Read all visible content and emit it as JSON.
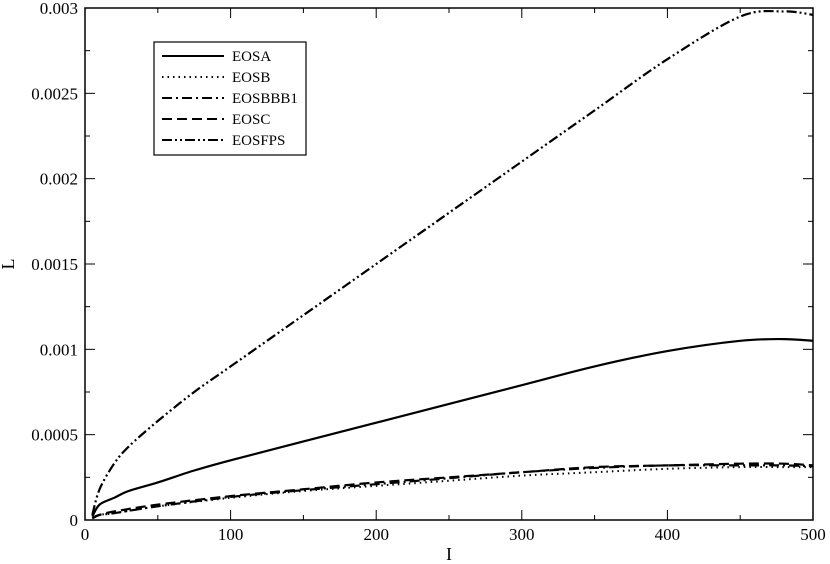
{
  "chart_data": {
    "type": "line",
    "title": "",
    "xlabel": "I",
    "ylabel": "L",
    "xlim": [
      0,
      500
    ],
    "ylim": [
      0,
      0.003
    ],
    "x_ticks": [
      0,
      100,
      200,
      300,
      400,
      500
    ],
    "x_tick_labels": [
      "0",
      "100",
      "200",
      "300",
      "400",
      "500"
    ],
    "y_ticks": [
      0,
      0.0005,
      0.001,
      0.0015,
      0.002,
      0.0025,
      0.003
    ],
    "y_tick_labels": [
      "0",
      "0.0005",
      "0.001",
      "0.0015",
      "0.002",
      "0.0025",
      "0.003"
    ],
    "grid": false,
    "legend_position": "top-left",
    "series": [
      {
        "name": "EOSA",
        "line_style": "solid",
        "x": [
          5,
          10,
          20,
          30,
          50,
          75,
          100,
          150,
          200,
          250,
          300,
          350,
          400,
          450,
          480,
          500
        ],
        "y": [
          2e-05,
          9e-05,
          0.00013,
          0.00017,
          0.00022,
          0.00029,
          0.00035,
          0.00046,
          0.00057,
          0.00068,
          0.00079,
          0.0009,
          0.00099,
          0.00105,
          0.00106,
          0.00105
        ]
      },
      {
        "name": "EOSB",
        "line_style": "dotted",
        "x": [
          5,
          10,
          20,
          50,
          100,
          150,
          200,
          250,
          300,
          350,
          400,
          450,
          480,
          500
        ],
        "y": [
          1e-05,
          3e-05,
          4e-05,
          8e-05,
          0.00013,
          0.00017,
          0.0002,
          0.00023,
          0.00026,
          0.00028,
          0.0003,
          0.00031,
          0.00031,
          0.00031
        ]
      },
      {
        "name": "EOSBBB1",
        "line_style": "dash-dot",
        "x": [
          5,
          10,
          20,
          50,
          100,
          150,
          200,
          250,
          300,
          350,
          400,
          450,
          480,
          500
        ],
        "y": [
          1e-05,
          3e-05,
          4e-05,
          8e-05,
          0.000135,
          0.000175,
          0.00021,
          0.000245,
          0.00028,
          0.000305,
          0.00032,
          0.00032,
          0.00032,
          0.000315
        ]
      },
      {
        "name": "EOSC",
        "line_style": "dashed",
        "x": [
          5,
          10,
          20,
          50,
          100,
          150,
          200,
          250,
          300,
          350,
          400,
          450,
          480,
          500
        ],
        "y": [
          1e-05,
          3e-05,
          5e-05,
          9e-05,
          0.00014,
          0.00018,
          0.00022,
          0.00025,
          0.00028,
          0.00031,
          0.00032,
          0.00033,
          0.00033,
          0.00032
        ]
      },
      {
        "name": "EOSFPS",
        "line_style": "dash-dot-dot",
        "x": [
          5,
          10,
          20,
          30,
          50,
          75,
          100,
          150,
          200,
          250,
          300,
          350,
          400,
          450,
          480,
          500
        ],
        "y": [
          3e-05,
          0.00018,
          0.00033,
          0.00043,
          0.00058,
          0.00075,
          0.0009,
          0.0012,
          0.0015,
          0.0018,
          0.0021,
          0.0024,
          0.0027,
          0.00295,
          0.00298,
          0.00296
        ]
      }
    ]
  }
}
